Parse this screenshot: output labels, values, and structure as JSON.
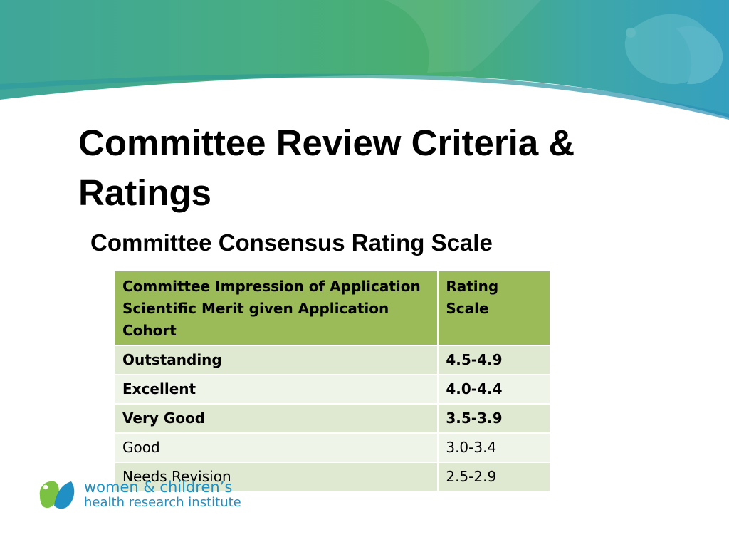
{
  "slide": {
    "title": "Committee Review Criteria & Ratings",
    "subtitle": "Committee Consensus Rating Scale"
  },
  "table": {
    "headers": [
      "Committee Impression of Application Scientific Merit given Application Cohort",
      "Rating Scale"
    ],
    "rows": [
      {
        "impression": "Outstanding",
        "rating": "4.5-4.9",
        "bold": true
      },
      {
        "impression": "Excellent",
        "rating": "4.0-4.4",
        "bold": true
      },
      {
        "impression": "Very Good",
        "rating": "3.5-3.9",
        "bold": true
      },
      {
        "impression": "Good",
        "rating": "3.0-3.4",
        "bold": false
      },
      {
        "impression": "Needs Revision",
        "rating": "2.5-2.9",
        "bold": false
      }
    ]
  },
  "logo": {
    "line1": "women & children’s",
    "line2": "health research institute"
  },
  "colors": {
    "header_green": "#9bbb59",
    "row_dark": "#dfe8d0",
    "row_light": "#eff4e9",
    "banner_teal": "#3aa7a0",
    "banner_green": "#4fb06a",
    "logo_blue": "#1f8fc4",
    "logo_green": "#7cc242"
  },
  "icons": {
    "banner_decoration": "leaf-shapes-icon",
    "logo_mark": "two-leaves-logo-icon"
  }
}
